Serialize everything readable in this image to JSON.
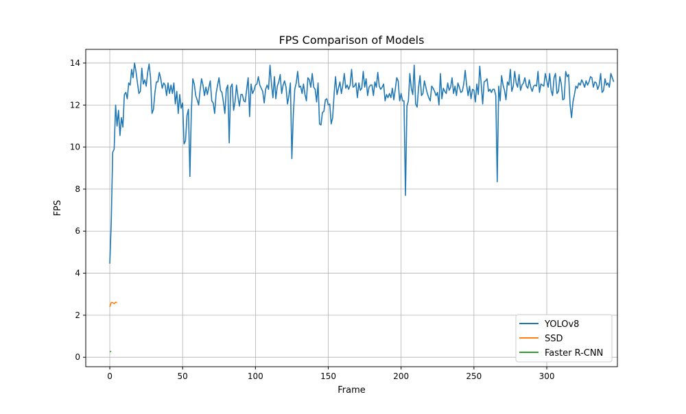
{
  "chart_data": {
    "type": "line",
    "title": "FPS Comparison of Models",
    "xlabel": "Frame",
    "ylabel": "FPS",
    "xlim": [
      -16.5,
      348.5
    ],
    "ylim": [
      -0.45,
      14.65
    ],
    "xticks": [
      0,
      50,
      100,
      150,
      200,
      250,
      300
    ],
    "yticks": [
      0,
      2,
      4,
      6,
      8,
      10,
      12,
      14
    ],
    "grid": true,
    "legend_position": "bottom-right",
    "series": [
      {
        "name": "YOLOv8",
        "color": "#1f77b4",
        "x_start": 0,
        "y": [
          4.45,
          6.4,
          9.75,
          9.9,
          12.0,
          11.0,
          11.75,
          10.55,
          11.4,
          10.95,
          12.5,
          12.6,
          12.3,
          13.05,
          12.95,
          13.7,
          13.3,
          14.0,
          13.6,
          13.05,
          12.55,
          12.65,
          13.75,
          13.0,
          13.2,
          12.9,
          13.55,
          13.95,
          13.3,
          11.6,
          11.8,
          12.6,
          13.1,
          13.1,
          13.55,
          13.25,
          12.8,
          13.05,
          12.95,
          12.45,
          13.05,
          12.55,
          12.95,
          12.55,
          13.05,
          12.05,
          12.65,
          11.6,
          12.5,
          11.85,
          12.1,
          10.15,
          10.3,
          11.5,
          11.8,
          8.6,
          11.7,
          13.25,
          13.0,
          12.45,
          12.25,
          12.0,
          12.7,
          13.25,
          12.95,
          12.45,
          12.85,
          12.5,
          12.85,
          13.15,
          12.2,
          12.1,
          11.6,
          12.55,
          12.95,
          13.3,
          12.7,
          12.6,
          12.15,
          11.6,
          12.75,
          12.95,
          10.2,
          12.85,
          13.0,
          11.75,
          12.15,
          12.95,
          12.4,
          11.95,
          12.5,
          12.5,
          12.2,
          12.15,
          12.75,
          13.3,
          11.45,
          13.0,
          12.55,
          12.7,
          12.95,
          13.0,
          13.35,
          12.95,
          12.8,
          12.65,
          12.1,
          12.75,
          12.95,
          12.75,
          13.9,
          13.0,
          12.35,
          13.35,
          12.3,
          12.9,
          13.1,
          13.45,
          12.55,
          12.95,
          13.15,
          12.85,
          12.05,
          12.45,
          13.05,
          9.45,
          11.55,
          12.75,
          13.05,
          13.6,
          12.85,
          12.9,
          12.55,
          13.0,
          12.5,
          12.2,
          13.3,
          13.2,
          12.85,
          13.5,
          12.85,
          12.75,
          12.15,
          13.05,
          11.1,
          11.05,
          11.65,
          11.7,
          12.25,
          12.3,
          12.0,
          12.05,
          11.1,
          11.4,
          12.5,
          13.35,
          12.5,
          12.8,
          13.1,
          12.55,
          12.95,
          13.5,
          12.8,
          12.95,
          12.75,
          12.95,
          13.7,
          12.85,
          12.9,
          13.05,
          12.35,
          13.05,
          12.7,
          12.8,
          13.6,
          12.85,
          13.25,
          12.45,
          12.85,
          12.95,
          12.95,
          12.45,
          13.1,
          12.85,
          13.55,
          12.9,
          12.75,
          12.85,
          13.0,
          12.2,
          12.5,
          12.35,
          12.55,
          12.35,
          12.8,
          12.25,
          12.75,
          13.3,
          13.15,
          12.2,
          12.55,
          12.2,
          12.2,
          7.7,
          11.95,
          12.2,
          13.5,
          12.8,
          12.5,
          13.9,
          12.05,
          11.9,
          12.85,
          13.4,
          12.45,
          12.55,
          13.15,
          12.85,
          12.55,
          12.35,
          12.2,
          12.9,
          12.8,
          12.65,
          12.45,
          12.6,
          12.0,
          13.5,
          12.3,
          12.8,
          12.65,
          12.55,
          13.05,
          12.7,
          12.85,
          13.3,
          12.55,
          12.9,
          12.45,
          13.05,
          12.85,
          12.6,
          12.65,
          13.0,
          13.65,
          12.95,
          12.45,
          12.9,
          12.3,
          12.75,
          12.7,
          12.15,
          13.0,
          12.5,
          13.85,
          13.0,
          12.05,
          13.1,
          13.15,
          13.25,
          12.65,
          12.75,
          12.6,
          12.75,
          12.75,
          12.45,
          8.35,
          12.9,
          12.2,
          13.4,
          12.95,
          12.7,
          12.25,
          13.1,
          12.95,
          13.7,
          12.65,
          12.9,
          13.6,
          13.05,
          12.85,
          13.45,
          12.7,
          12.95,
          13.05,
          13.3,
          12.9,
          12.8,
          13.2,
          12.85,
          12.65,
          12.9,
          12.95,
          12.9,
          13.6,
          12.6,
          13.0,
          12.95,
          12.9,
          13.5,
          13.15,
          12.85,
          13.5,
          12.7,
          12.45,
          13.3,
          13.5,
          12.55,
          12.65,
          13.35,
          13.0,
          12.25,
          12.3,
          13.6,
          13.35,
          13.45,
          12.05,
          11.4,
          12.15,
          12.5,
          12.9,
          12.8,
          13.05,
          12.95,
          13.2,
          13.05,
          12.85,
          13.15,
          12.95,
          13.1,
          13.35,
          13.3,
          12.85,
          13.1,
          13.05,
          12.75,
          12.95,
          13.5,
          12.6,
          12.7,
          13.25,
          12.95,
          13.05,
          12.85,
          13.5,
          13.3,
          13.1
        ]
      },
      {
        "name": "SSD",
        "color": "#ff7f0e",
        "x_start": 0,
        "y": [
          2.4,
          2.6,
          2.6,
          2.55,
          2.62,
          2.6
        ]
      },
      {
        "name": "Faster R-CNN",
        "color": "#2ca02c",
        "x_start": 0,
        "y": [
          0.26,
          0.29
        ]
      }
    ]
  }
}
